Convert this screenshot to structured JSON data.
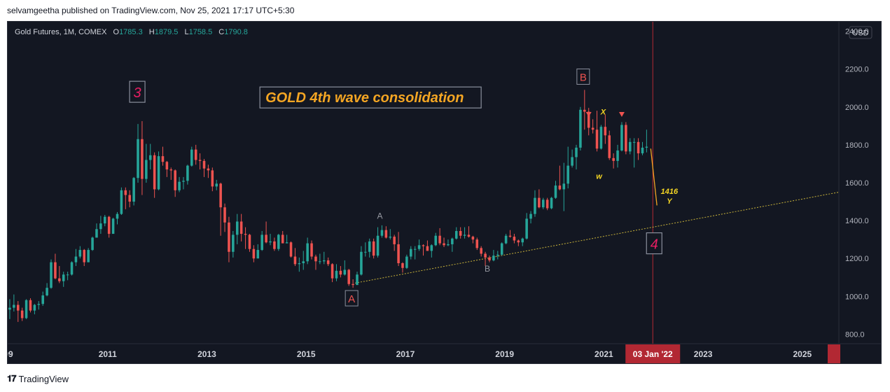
{
  "publisher_line": "selvamgeetha published on TradingView.com, Nov 25, 2021 17:17 UTC+5:30",
  "legend": {
    "symbol": "Gold Futures, 1M, COMEX",
    "o_key": "O",
    "o": "1785.3",
    "h_key": "H",
    "h": "1879.5",
    "l_key": "L",
    "l": "1758.5",
    "c_key": "C",
    "c": "1790.8"
  },
  "currency": "USD",
  "footer_brand": "TradingView",
  "colors": {
    "up": "#26a69a",
    "down": "#ef5350",
    "background": "#131722",
    "annotation_orange": "#f5a623",
    "annotation_yellow": "#f5d623",
    "wave_pink": "#e91e63",
    "date_badge": "#b22833"
  },
  "chart_data": {
    "type": "candlestick",
    "title": "",
    "x_range": [
      "2009-01",
      "2025-10"
    ],
    "y_range": [
      750,
      2450
    ],
    "y_scale": "linear",
    "grid": false,
    "y_ticks": [
      "2400.0",
      "2200.0",
      "2000.0",
      "1800.0",
      "1600.0",
      "1400.0",
      "1200.0",
      "1000.0",
      "800.0"
    ],
    "x_ticks": [
      "09",
      "2011",
      "2013",
      "2015",
      "2017",
      "2019",
      "2021",
      "2023",
      "2025"
    ],
    "highlighted_date": "03 Jan '22",
    "annotations": [
      {
        "text": "GOLD 4th wave consolidation",
        "date": "2014-03",
        "price": 2050,
        "style": "boxed-title"
      },
      {
        "text": "3",
        "date": "2011-08",
        "price": 2080,
        "style": "boxed-wave"
      },
      {
        "text": "4",
        "date": "2022-01",
        "price": 1280,
        "style": "boxed-wave"
      },
      {
        "text": "A",
        "date": "2015-12",
        "price": 990,
        "style": "boxed-red"
      },
      {
        "text": "B",
        "date": "2020-08",
        "price": 2160,
        "style": "boxed-red"
      },
      {
        "text": "A",
        "date": "2016-07",
        "price": 1410,
        "style": "grey"
      },
      {
        "text": "B",
        "date": "2018-09",
        "price": 1130,
        "style": "grey"
      },
      {
        "text": "X",
        "date": "2021-01",
        "price": 1960,
        "style": "yellow"
      },
      {
        "text": "w",
        "date": "2020-12",
        "price": 1620,
        "style": "yellow"
      },
      {
        "text": "1416",
        "date": "2022-05",
        "price": 1540,
        "style": "yellow"
      },
      {
        "text": "Y",
        "date": "2022-05",
        "price": 1490,
        "style": "yellow"
      }
    ],
    "projection": [
      [
        "2021-12",
        1780
      ],
      [
        "2022-02",
        1480
      ]
    ],
    "trendline": [
      [
        "2016-01",
        1070
      ],
      [
        "2025-10",
        1550
      ]
    ],
    "candles": [
      [
        "2009-01",
        930,
        985,
        880,
        940
      ],
      [
        "2009-02",
        940,
        1010,
        920,
        955
      ],
      [
        "2009-03",
        955,
        975,
        865,
        925
      ],
      [
        "2009-04",
        925,
        940,
        870,
        885
      ],
      [
        "2009-05",
        885,
        985,
        880,
        980
      ],
      [
        "2009-06",
        980,
        990,
        915,
        925
      ],
      [
        "2009-07",
        925,
        960,
        905,
        955
      ],
      [
        "2009-08",
        955,
        975,
        930,
        960
      ],
      [
        "2009-09",
        960,
        1025,
        950,
        1005
      ],
      [
        "2009-10",
        1005,
        1070,
        1000,
        1045
      ],
      [
        "2009-11",
        1045,
        1195,
        1040,
        1180
      ],
      [
        "2009-12",
        1180,
        1225,
        1090,
        1095
      ],
      [
        "2010-01",
        1095,
        1160,
        1070,
        1080
      ],
      [
        "2010-02",
        1080,
        1130,
        1050,
        1115
      ],
      [
        "2010-03",
        1115,
        1130,
        1085,
        1115
      ],
      [
        "2010-04",
        1115,
        1185,
        1110,
        1180
      ],
      [
        "2010-05",
        1180,
        1250,
        1160,
        1210
      ],
      [
        "2010-06",
        1210,
        1265,
        1200,
        1245
      ],
      [
        "2010-07",
        1245,
        1250,
        1160,
        1180
      ],
      [
        "2010-08",
        1180,
        1255,
        1180,
        1245
      ],
      [
        "2010-09",
        1245,
        1315,
        1240,
        1310
      ],
      [
        "2010-10",
        1310,
        1385,
        1310,
        1355
      ],
      [
        "2010-11",
        1355,
        1425,
        1330,
        1385
      ],
      [
        "2010-12",
        1385,
        1430,
        1370,
        1420
      ],
      [
        "2011-01",
        1420,
        1425,
        1310,
        1330
      ],
      [
        "2011-02",
        1330,
        1415,
        1330,
        1410
      ],
      [
        "2011-03",
        1410,
        1445,
        1380,
        1435
      ],
      [
        "2011-04",
        1435,
        1575,
        1430,
        1560
      ],
      [
        "2011-05",
        1560,
        1575,
        1460,
        1535
      ],
      [
        "2011-06",
        1535,
        1560,
        1470,
        1500
      ],
      [
        "2011-07",
        1500,
        1630,
        1480,
        1625
      ],
      [
        "2011-08",
        1625,
        1910,
        1600,
        1830
      ],
      [
        "2011-09",
        1830,
        1925,
        1535,
        1620
      ],
      [
        "2011-10",
        1620,
        1805,
        1600,
        1720
      ],
      [
        "2011-11",
        1720,
        1805,
        1670,
        1745
      ],
      [
        "2011-12",
        1745,
        1760,
        1520,
        1565
      ],
      [
        "2012-01",
        1565,
        1765,
        1560,
        1740
      ],
      [
        "2012-02",
        1740,
        1790,
        1690,
        1710
      ],
      [
        "2012-03",
        1710,
        1715,
        1630,
        1670
      ],
      [
        "2012-04",
        1670,
        1680,
        1615,
        1665
      ],
      [
        "2012-05",
        1665,
        1670,
        1525,
        1560
      ],
      [
        "2012-06",
        1560,
        1630,
        1550,
        1605
      ],
      [
        "2012-07",
        1605,
        1630,
        1565,
        1610
      ],
      [
        "2012-08",
        1610,
        1695,
        1590,
        1690
      ],
      [
        "2012-09",
        1690,
        1790,
        1685,
        1775
      ],
      [
        "2012-10",
        1775,
        1800,
        1695,
        1720
      ],
      [
        "2012-11",
        1720,
        1755,
        1670,
        1715
      ],
      [
        "2012-12",
        1715,
        1725,
        1630,
        1675
      ],
      [
        "2013-01",
        1675,
        1695,
        1625,
        1665
      ],
      [
        "2013-02",
        1665,
        1680,
        1555,
        1580
      ],
      [
        "2013-03",
        1580,
        1615,
        1560,
        1595
      ],
      [
        "2013-04",
        1595,
        1600,
        1320,
        1470
      ],
      [
        "2013-05",
        1470,
        1490,
        1340,
        1390
      ],
      [
        "2013-06",
        1390,
        1420,
        1180,
        1235
      ],
      [
        "2013-07",
        1235,
        1345,
        1205,
        1325
      ],
      [
        "2013-08",
        1325,
        1435,
        1275,
        1395
      ],
      [
        "2013-09",
        1395,
        1435,
        1290,
        1330
      ],
      [
        "2013-10",
        1330,
        1365,
        1250,
        1325
      ],
      [
        "2013-11",
        1325,
        1330,
        1235,
        1250
      ],
      [
        "2013-12",
        1250,
        1270,
        1180,
        1200
      ],
      [
        "2014-01",
        1200,
        1275,
        1200,
        1245
      ],
      [
        "2014-02",
        1245,
        1345,
        1240,
        1325
      ],
      [
        "2014-03",
        1325,
        1395,
        1280,
        1285
      ],
      [
        "2014-04",
        1285,
        1330,
        1270,
        1290
      ],
      [
        "2014-05",
        1290,
        1310,
        1240,
        1250
      ],
      [
        "2014-06",
        1250,
        1330,
        1240,
        1325
      ],
      [
        "2014-07",
        1325,
        1345,
        1280,
        1280
      ],
      [
        "2014-08",
        1280,
        1325,
        1280,
        1285
      ],
      [
        "2014-09",
        1285,
        1290,
        1205,
        1210
      ],
      [
        "2014-10",
        1210,
        1255,
        1160,
        1170
      ],
      [
        "2014-11",
        1170,
        1205,
        1130,
        1175
      ],
      [
        "2014-12",
        1175,
        1240,
        1140,
        1185
      ],
      [
        "2015-01",
        1185,
        1310,
        1170,
        1280
      ],
      [
        "2015-02",
        1280,
        1295,
        1195,
        1210
      ],
      [
        "2015-03",
        1210,
        1220,
        1140,
        1185
      ],
      [
        "2015-04",
        1185,
        1225,
        1170,
        1185
      ],
      [
        "2015-05",
        1185,
        1235,
        1170,
        1190
      ],
      [
        "2015-06",
        1190,
        1205,
        1160,
        1170
      ],
      [
        "2015-07",
        1170,
        1175,
        1075,
        1095
      ],
      [
        "2015-08",
        1095,
        1170,
        1080,
        1135
      ],
      [
        "2015-09",
        1135,
        1160,
        1100,
        1115
      ],
      [
        "2015-10",
        1115,
        1190,
        1110,
        1140
      ],
      [
        "2015-11",
        1140,
        1145,
        1055,
        1065
      ],
      [
        "2015-12",
        1065,
        1090,
        1045,
        1060
      ],
      [
        "2016-01",
        1060,
        1130,
        1060,
        1115
      ],
      [
        "2016-02",
        1115,
        1265,
        1110,
        1235
      ],
      [
        "2016-03",
        1235,
        1285,
        1210,
        1235
      ],
      [
        "2016-04",
        1235,
        1305,
        1205,
        1290
      ],
      [
        "2016-05",
        1290,
        1305,
        1200,
        1215
      ],
      [
        "2016-06",
        1215,
        1365,
        1205,
        1320
      ],
      [
        "2016-07",
        1320,
        1375,
        1310,
        1350
      ],
      [
        "2016-08",
        1350,
        1370,
        1305,
        1310
      ],
      [
        "2016-09",
        1310,
        1355,
        1300,
        1315
      ],
      [
        "2016-10",
        1315,
        1325,
        1240,
        1275
      ],
      [
        "2016-11",
        1275,
        1340,
        1160,
        1175
      ],
      [
        "2016-12",
        1175,
        1180,
        1125,
        1150
      ],
      [
        "2017-01",
        1150,
        1220,
        1145,
        1210
      ],
      [
        "2017-02",
        1210,
        1265,
        1195,
        1250
      ],
      [
        "2017-03",
        1250,
        1265,
        1195,
        1250
      ],
      [
        "2017-04",
        1250,
        1300,
        1240,
        1270
      ],
      [
        "2017-05",
        1270,
        1275,
        1215,
        1265
      ],
      [
        "2017-06",
        1265,
        1295,
        1240,
        1240
      ],
      [
        "2017-07",
        1240,
        1275,
        1205,
        1270
      ],
      [
        "2017-08",
        1270,
        1335,
        1265,
        1320
      ],
      [
        "2017-09",
        1320,
        1360,
        1270,
        1280
      ],
      [
        "2017-10",
        1280,
        1310,
        1260,
        1270
      ],
      [
        "2017-11",
        1270,
        1300,
        1265,
        1275
      ],
      [
        "2017-12",
        1275,
        1310,
        1235,
        1305
      ],
      [
        "2018-01",
        1305,
        1365,
        1300,
        1345
      ],
      [
        "2018-02",
        1345,
        1365,
        1305,
        1320
      ],
      [
        "2018-03",
        1320,
        1365,
        1305,
        1325
      ],
      [
        "2018-04",
        1325,
        1370,
        1310,
        1315
      ],
      [
        "2018-05",
        1315,
        1320,
        1280,
        1300
      ],
      [
        "2018-06",
        1300,
        1310,
        1245,
        1255
      ],
      [
        "2018-07",
        1255,
        1265,
        1210,
        1225
      ],
      [
        "2018-08",
        1225,
        1235,
        1160,
        1205
      ],
      [
        "2018-09",
        1205,
        1215,
        1180,
        1190
      ],
      [
        "2018-10",
        1190,
        1245,
        1185,
        1215
      ],
      [
        "2018-11",
        1215,
        1240,
        1195,
        1220
      ],
      [
        "2018-12",
        1220,
        1285,
        1215,
        1280
      ],
      [
        "2019-01",
        1280,
        1330,
        1275,
        1320
      ],
      [
        "2019-02",
        1320,
        1350,
        1310,
        1315
      ],
      [
        "2019-03",
        1315,
        1330,
        1280,
        1295
      ],
      [
        "2019-04",
        1295,
        1300,
        1265,
        1285
      ],
      [
        "2019-05",
        1285,
        1310,
        1265,
        1305
      ],
      [
        "2019-06",
        1305,
        1440,
        1300,
        1410
      ],
      [
        "2019-07",
        1410,
        1450,
        1385,
        1435
      ],
      [
        "2019-08",
        1435,
        1560,
        1420,
        1520
      ],
      [
        "2019-09",
        1520,
        1565,
        1465,
        1470
      ],
      [
        "2019-10",
        1470,
        1520,
        1460,
        1510
      ],
      [
        "2019-11",
        1510,
        1520,
        1455,
        1465
      ],
      [
        "2019-12",
        1465,
        1525,
        1460,
        1520
      ],
      [
        "2020-01",
        1520,
        1610,
        1515,
        1585
      ],
      [
        "2020-02",
        1585,
        1690,
        1560,
        1565
      ],
      [
        "2020-03",
        1565,
        1705,
        1450,
        1595
      ],
      [
        "2020-04",
        1595,
        1790,
        1570,
        1690
      ],
      [
        "2020-05",
        1690,
        1775,
        1680,
        1735
      ],
      [
        "2020-06",
        1735,
        1800,
        1670,
        1785
      ],
      [
        "2020-07",
        1785,
        2000,
        1770,
        1985
      ],
      [
        "2020-08",
        1985,
        2090,
        1880,
        1975
      ],
      [
        "2020-09",
        1975,
        1995,
        1850,
        1890
      ],
      [
        "2020-10",
        1890,
        1935,
        1860,
        1880
      ],
      [
        "2020-11",
        1880,
        1980,
        1765,
        1780
      ],
      [
        "2020-12",
        1780,
        1905,
        1775,
        1895
      ],
      [
        "2021-01",
        1895,
        1960,
        1805,
        1850
      ],
      [
        "2021-02",
        1850,
        1875,
        1720,
        1730
      ],
      [
        "2021-03",
        1730,
        1755,
        1675,
        1715
      ],
      [
        "2021-04",
        1715,
        1800,
        1680,
        1770
      ],
      [
        "2021-05",
        1770,
        1920,
        1765,
        1905
      ],
      [
        "2021-06",
        1905,
        1920,
        1750,
        1765
      ],
      [
        "2021-07",
        1765,
        1835,
        1750,
        1815
      ],
      [
        "2021-08",
        1815,
        1835,
        1680,
        1815
      ],
      [
        "2021-09",
        1815,
        1835,
        1720,
        1755
      ],
      [
        "2021-10",
        1755,
        1815,
        1745,
        1785
      ],
      [
        "2021-11",
        1785,
        1880,
        1760,
        1790
      ]
    ]
  }
}
